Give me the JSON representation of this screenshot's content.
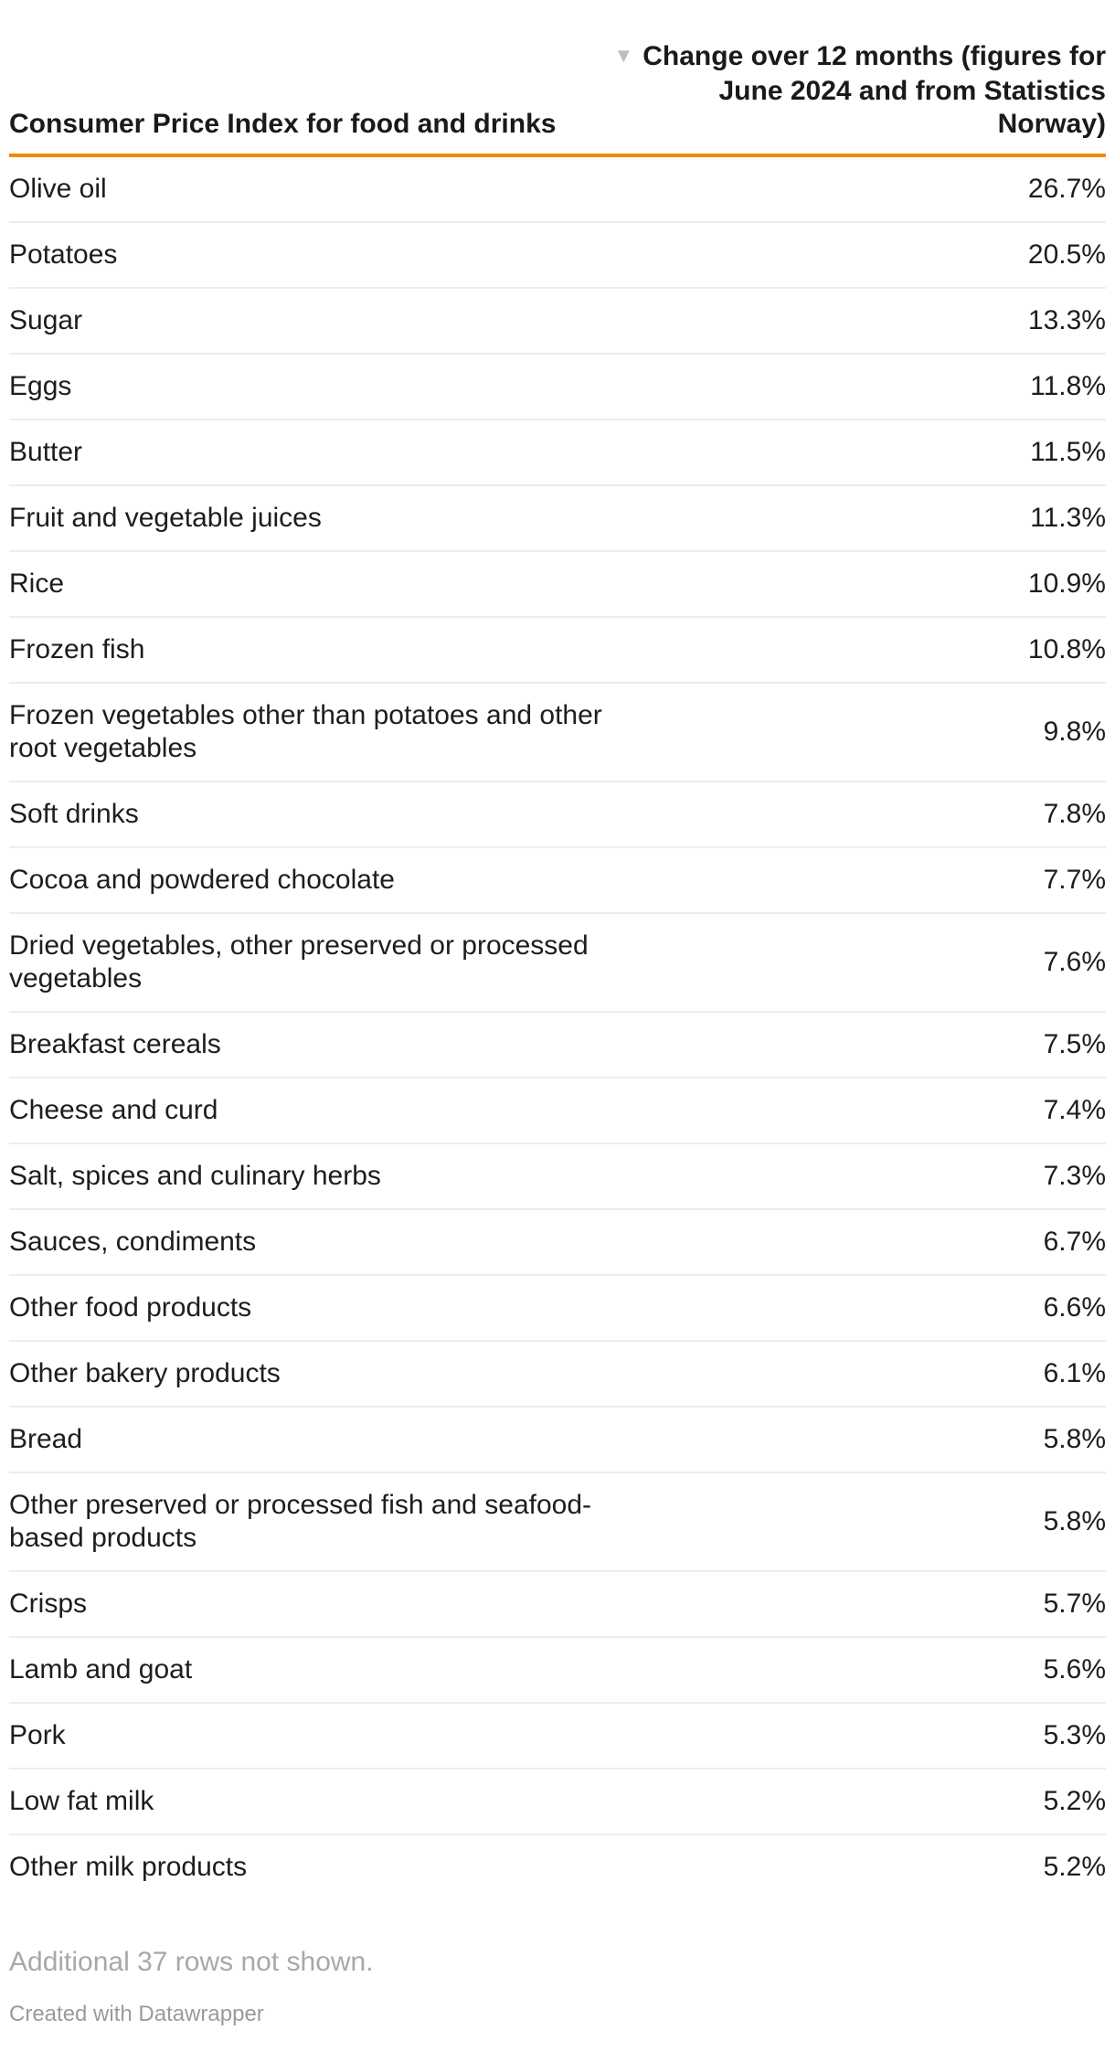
{
  "colors": {
    "accent": "#f08b00",
    "divider": "#ededed",
    "text": "#1d1d1d",
    "muted": "#a8a8a8",
    "attribution": "#9a9a9a",
    "sort_icon": "#bdbdbd"
  },
  "table": {
    "columns": [
      {
        "label": "Consumer Price Index for food and drinks"
      },
      {
        "label": "Change over 12 months (figures for June 2024 and from Statistics Norway)",
        "sort": "descending",
        "sort_icon": "▼"
      }
    ],
    "rows": [
      {
        "label": "Olive oil",
        "value": "26.7%"
      },
      {
        "label": "Potatoes",
        "value": "20.5%"
      },
      {
        "label": "Sugar",
        "value": "13.3%"
      },
      {
        "label": "Eggs",
        "value": "11.8%"
      },
      {
        "label": "Butter",
        "value": "11.5%"
      },
      {
        "label": "Fruit and vegetable juices",
        "value": "11.3%"
      },
      {
        "label": "Rice",
        "value": "10.9%"
      },
      {
        "label": "Frozen fish",
        "value": "10.8%"
      },
      {
        "label": "Frozen vegetables other than potatoes and other root vegetables",
        "value": "9.8%"
      },
      {
        "label": "Soft drinks",
        "value": "7.8%"
      },
      {
        "label": "Cocoa and powdered chocolate",
        "value": "7.7%"
      },
      {
        "label": "Dried vegetables, other preserved or processed vegetables",
        "value": "7.6%"
      },
      {
        "label": "Breakfast cereals",
        "value": "7.5%"
      },
      {
        "label": "Cheese and curd",
        "value": "7.4%"
      },
      {
        "label": "Salt, spices and culinary herbs",
        "value": "7.3%"
      },
      {
        "label": "Sauces, condiments",
        "value": "6.7%"
      },
      {
        "label": "Other food products",
        "value": "6.6%"
      },
      {
        "label": "Other bakery products",
        "value": "6.1%"
      },
      {
        "label": "Bread",
        "value": "5.8%"
      },
      {
        "label": "Other preserved or processed fish and seafood-based products",
        "value": "5.8%"
      },
      {
        "label": "Crisps",
        "value": "5.7%"
      },
      {
        "label": "Lamb and goat",
        "value": "5.6%"
      },
      {
        "label": "Pork",
        "value": "5.3%"
      },
      {
        "label": "Low fat milk",
        "value": "5.2%"
      },
      {
        "label": "Other milk products",
        "value": "5.2%"
      }
    ]
  },
  "footer": {
    "note": "Additional 37 rows not shown.",
    "attribution": "Created with Datawrapper"
  },
  "chart_data": {
    "type": "table",
    "title": "Consumer Price Index for food and drinks",
    "value_column": "Change over 12 months (figures for June 2024 and from Statistics Norway)",
    "unit": "%",
    "sort": "descending",
    "categories": [
      "Olive oil",
      "Potatoes",
      "Sugar",
      "Eggs",
      "Butter",
      "Fruit and vegetable juices",
      "Rice",
      "Frozen fish",
      "Frozen vegetables other than potatoes and other root vegetables",
      "Soft drinks",
      "Cocoa and powdered chocolate",
      "Dried vegetables, other preserved or processed vegetables",
      "Breakfast cereals",
      "Cheese and curd",
      "Salt, spices and culinary herbs",
      "Sauces, condiments",
      "Other food products",
      "Other bakery products",
      "Bread",
      "Other preserved or processed fish and seafood-based products",
      "Crisps",
      "Lamb and goat",
      "Pork",
      "Low fat milk",
      "Other milk products"
    ],
    "values": [
      26.7,
      20.5,
      13.3,
      11.8,
      11.5,
      11.3,
      10.9,
      10.8,
      9.8,
      7.8,
      7.7,
      7.6,
      7.5,
      7.4,
      7.3,
      6.7,
      6.6,
      6.1,
      5.8,
      5.8,
      5.7,
      5.6,
      5.3,
      5.2,
      5.2
    ],
    "note": "Additional 37 rows not shown."
  }
}
